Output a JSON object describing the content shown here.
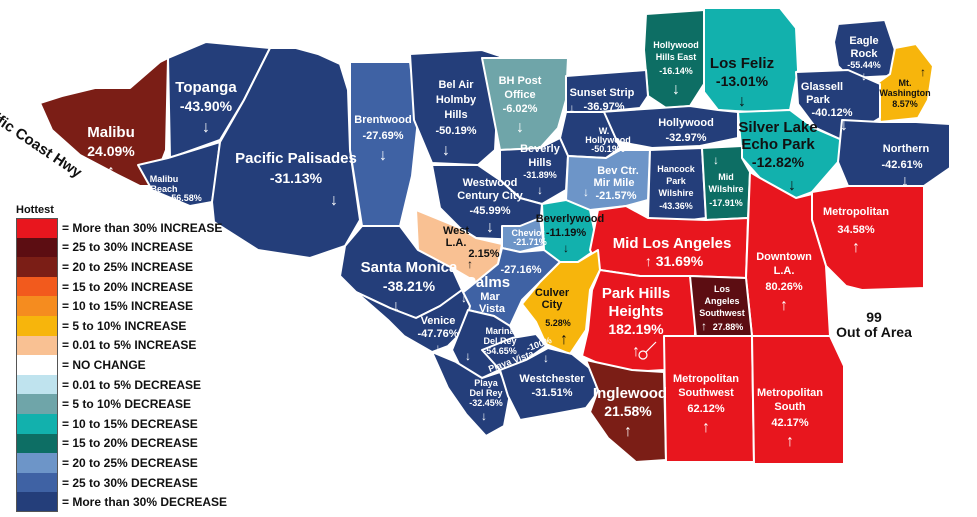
{
  "map": {
    "out_of_area_number": "99",
    "out_of_area_label": "Out of Area",
    "coast_label": "Pacific Coast  Hwy",
    "regions": [
      {
        "key": "malibu",
        "name": "Malibu",
        "value": "24.09%",
        "arrow": "↑",
        "color": "#7b1e16"
      },
      {
        "key": "topanga",
        "name": "Topanga",
        "value": "-43.90%",
        "arrow": "↓",
        "color": "#243e7a"
      },
      {
        "key": "malibu_beach",
        "name": "Malibu Beach",
        "value": "-56.58%",
        "arrow": "",
        "color": "#243e7a"
      },
      {
        "key": "pacific_palisades",
        "name": "Pacific Palisades",
        "value": "-31.13%",
        "arrow": "↓",
        "color": "#243e7a"
      },
      {
        "key": "brentwood",
        "name": "Brentwood",
        "value": "-27.69%",
        "arrow": "↓",
        "color": "#3f62a4"
      },
      {
        "key": "bel_air",
        "name": "Bel Air Holmby Hills",
        "value": "-50.19%",
        "arrow": "↓",
        "color": "#243e7a"
      },
      {
        "key": "bh_post_office",
        "name": "BH Post Office",
        "value": "-6.02%",
        "arrow": "↓",
        "color": "#6fa5a9"
      },
      {
        "key": "hollywood_hills_east",
        "name": "Hollywood Hills East",
        "value": "-16.14%",
        "arrow": "↓",
        "color": "#0d6e64"
      },
      {
        "key": "los_feliz",
        "name": "Los Feliz",
        "value": "-13.01%",
        "arrow": "↓",
        "color": "#12b1ad"
      },
      {
        "key": "eagle_rock",
        "name": "Eagle Rock",
        "value": "-55.44%",
        "arrow": "↓",
        "color": "#243e7a"
      },
      {
        "key": "mt_washington",
        "name": "Mt. Washington",
        "value": "8.57%",
        "arrow": "↑",
        "color": "#f7b50c"
      },
      {
        "key": "glassell_park",
        "name": "Glassell Park",
        "value": "-40.12%",
        "arrow": "↓",
        "color": "#243e7a"
      },
      {
        "key": "sunset_strip",
        "name": "Sunset Strip",
        "value": "-36.97%",
        "arrow": "↓",
        "color": "#243e7a"
      },
      {
        "key": "hollywood",
        "name": "Hollywood",
        "value": "-32.97%",
        "arrow": "↓",
        "color": "#243e7a"
      },
      {
        "key": "w_hollywood",
        "name": "W. Hollywood",
        "value": "-50.19%",
        "arrow": "↓",
        "color": "#243e7a"
      },
      {
        "key": "silver_lake",
        "name": "Silver Lake Echo Park",
        "value": "-12.82%",
        "arrow": "↓",
        "color": "#12b1ad"
      },
      {
        "key": "northern",
        "name": "Northern",
        "value": "-42.61%",
        "arrow": "↓",
        "color": "#243e7a"
      },
      {
        "key": "beverly_hills",
        "name": "Beverly Hills",
        "value": "-31.89%",
        "arrow": "↓",
        "color": "#243e7a"
      },
      {
        "key": "bev_ctr",
        "name": "Bev Ctr. Mir Mile",
        "value": "-21.57%",
        "arrow": "↓",
        "color": "#6d95c8"
      },
      {
        "key": "hancock_park",
        "name": "Hancock Park Wilshire",
        "value": "-43.36%",
        "arrow": "↓",
        "color": "#243e7a"
      },
      {
        "key": "mid_wilshire",
        "name": "Mid Wilshire",
        "value": "-17.91%",
        "arrow": "↓",
        "color": "#0d6e64"
      },
      {
        "key": "westwood",
        "name": "Westwood Century City",
        "value": "-45.99%",
        "arrow": "↓",
        "color": "#243e7a"
      },
      {
        "key": "west_la",
        "name": "West L.A.",
        "value": "2.15%",
        "arrow": "↑",
        "color": "#f9c193"
      },
      {
        "key": "cheviot",
        "name": "Cheviot",
        "value": "-21.71%",
        "arrow": "↓",
        "color": "#6d95c8"
      },
      {
        "key": "beverlywood",
        "name": "Beverlywood",
        "value": "-11.19%",
        "arrow": "↓",
        "color": "#12b1ad"
      },
      {
        "key": "mid_los_angeles",
        "name": "Mid Los Angeles",
        "value": "31.69%",
        "arrow": "↑",
        "color": "#e8161e"
      },
      {
        "key": "metropolitan",
        "name": "Metropolitan",
        "value": "34.58%",
        "arrow": "↑",
        "color": "#e8161e"
      },
      {
        "key": "downtown",
        "name": "Downtown L.A.",
        "value": "80.26%",
        "arrow": "↑",
        "color": "#e8161e"
      },
      {
        "key": "santa_monica",
        "name": "Santa Monica",
        "value": "-38.21%",
        "arrow": "↓",
        "color": "#243e7a"
      },
      {
        "key": "palms",
        "name": "Palms Mar Vista",
        "value": "-27.16%",
        "arrow": "↓",
        "color": "#3f62a4"
      },
      {
        "key": "culver_city",
        "name": "Culver City",
        "value": "5.28%",
        "arrow": "↑",
        "color": "#f7b50c"
      },
      {
        "key": "park_hills",
        "name": "Park Hills Heights",
        "value": "182.19%",
        "arrow": "↑",
        "color": "#e8161e"
      },
      {
        "key": "la_southwest",
        "name": "Los Angeles Southwest",
        "value": "27.88%",
        "arrow": "↑",
        "color": "#5c0d12"
      },
      {
        "key": "venice",
        "name": "Venice",
        "value": "-47.76%",
        "arrow": "↓",
        "color": "#243e7a"
      },
      {
        "key": "marina",
        "name": "Marina Del Rey",
        "value": "-54.65%",
        "arrow": "↓",
        "color": "#243e7a"
      },
      {
        "key": "playa_vista",
        "name": "Playa Vista",
        "value": "-100%",
        "arrow": "",
        "color": "#243e7a"
      },
      {
        "key": "playa_del_rey",
        "name": "Playa Del Rey",
        "value": "-32.45%",
        "arrow": "↓",
        "color": "#243e7a"
      },
      {
        "key": "westchester",
        "name": "Westchester",
        "value": "-31.51%",
        "arrow": "↓",
        "color": "#243e7a"
      },
      {
        "key": "inglewood",
        "name": "Inglewood",
        "value": "21.58%",
        "arrow": "↑",
        "color": "#7b1e16"
      },
      {
        "key": "metro_southwest",
        "name": "Metropolitan Southwest",
        "value": "62.12%",
        "arrow": "↑",
        "color": "#e8161e"
      },
      {
        "key": "metro_south",
        "name": "Metropolitan South",
        "value": "42.17%",
        "arrow": "↑",
        "color": "#e8161e"
      }
    ]
  },
  "legend": {
    "title": "Hottest",
    "items": [
      {
        "label": "= More than 30% INCREASE",
        "color": "#e8161e"
      },
      {
        "label": "= 25 to 30% INCREASE",
        "color": "#5c0d12"
      },
      {
        "label": "= 20 to 25% INCREASE",
        "color": "#7b1e16"
      },
      {
        "label": "= 15 to 20% INCREASE",
        "color": "#f25a1d"
      },
      {
        "label": "= 10 to 15% INCREASE",
        "color": "#f58c1f"
      },
      {
        "label": "= 5 to 10% INCREASE",
        "color": "#f7b50c"
      },
      {
        "label": "= 0.01 to 5% INCREASE",
        "color": "#f9c193"
      },
      {
        "label": "= NO CHANGE",
        "color": "#ffffff"
      },
      {
        "label": "= 0.01 to 5% DECREASE",
        "color": "#bfe3ee"
      },
      {
        "label": "= 5 to 10% DECREASE",
        "color": "#6fa5a9"
      },
      {
        "label": "= 10 to 15% DECREASE",
        "color": "#12b1ad"
      },
      {
        "label": "= 15 to 20% DECREASE",
        "color": "#0d6e64"
      },
      {
        "label": "= 20 to 25% DECREASE",
        "color": "#6d95c8"
      },
      {
        "label": "= 25 to 30% DECREASE",
        "color": "#3f62a4"
      },
      {
        "label": "= More than 30% DECREASE",
        "color": "#243e7a"
      }
    ]
  }
}
